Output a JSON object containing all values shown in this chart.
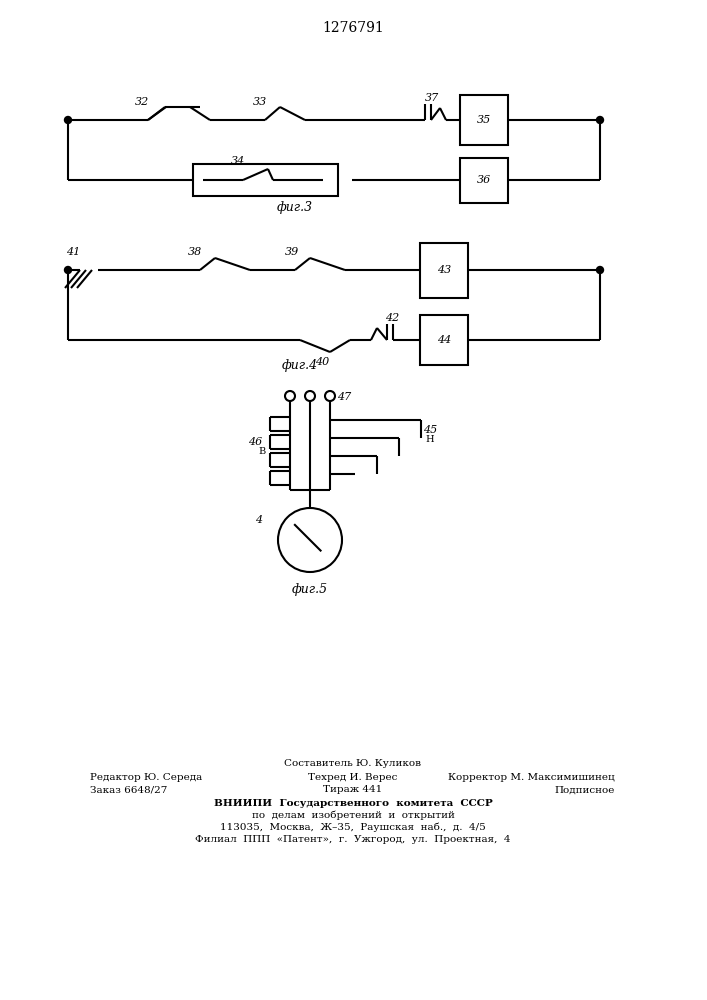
{
  "title": "1276791",
  "fig3_label": "фиг.3",
  "fig4_label": "фиг.4",
  "fig5_label": "фиг.5",
  "bg_color": "#ffffff"
}
